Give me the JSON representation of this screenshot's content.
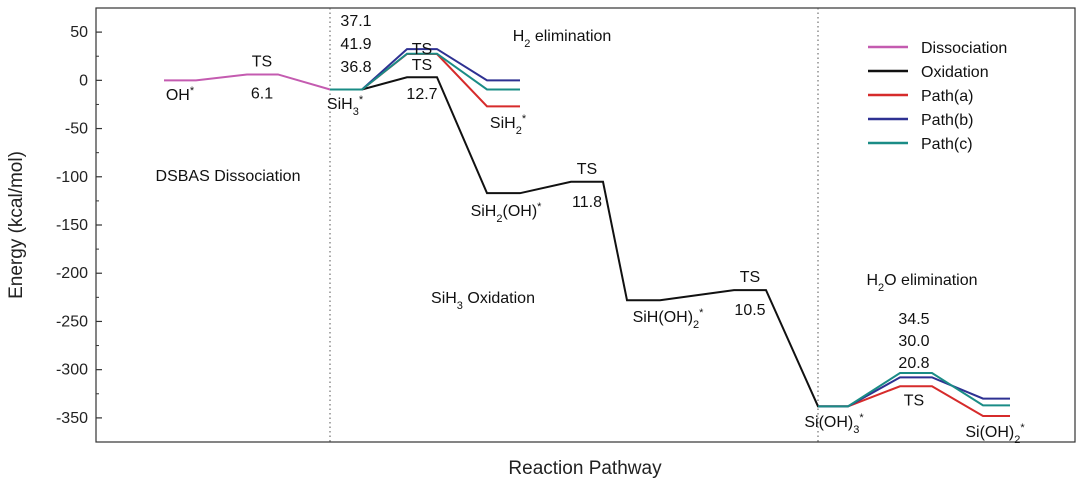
{
  "chart_data": {
    "type": "line",
    "title": "",
    "xlabel": "Reaction Pathway",
    "ylabel": "Energy (kcal/mol)",
    "ylim": [
      -375,
      75
    ],
    "yticks": [
      50,
      0,
      -50,
      -100,
      -150,
      -200,
      -250,
      -300,
      -350
    ],
    "legend_position": "top-right",
    "colors": {
      "Dissociation": "#c45bb0",
      "Oxidation": "#111111",
      "Path(a)": "#d62b2b",
      "Path(b)": "#2e3192",
      "Path(c)": "#1a8c86"
    },
    "series": [
      {
        "name": "Dissociation",
        "points": [
          [
            "OH*",
            0
          ],
          [
            "TS",
            6.1
          ],
          [
            "SiH3*",
            -9.5
          ]
        ]
      },
      {
        "name": "Oxidation",
        "points": [
          [
            "SiH3*",
            -9.5
          ],
          [
            "TS",
            3.2
          ],
          [
            "SiH2(OH)*",
            -117
          ],
          [
            "TS",
            -105.2
          ],
          [
            "SiH(OH)2*",
            -228
          ],
          [
            "TS",
            -217.5
          ],
          [
            "Si(OH)3*",
            -338
          ]
        ]
      },
      {
        "name": "Path(a)",
        "points": [
          [
            "SiH3*",
            -9.5
          ],
          [
            "TS",
            27.3
          ],
          [
            "SiH2*",
            -27
          ],
          [
            "Si(OH)3*",
            -338
          ],
          [
            "TS",
            -317.2
          ],
          [
            "Si(OH)2*",
            -348
          ]
        ]
      },
      {
        "name": "Path(b)",
        "points": [
          [
            "SiH3*",
            -9.5
          ],
          [
            "TS",
            32.4
          ],
          [
            "SiH2*",
            0
          ],
          [
            "Si(OH)3*",
            -338
          ],
          [
            "TS",
            -308
          ],
          [
            "Si(OH)2*",
            -330
          ]
        ]
      },
      {
        "name": "Path(c)",
        "points": [
          [
            "SiH3*",
            -9.5
          ],
          [
            "TS",
            27.6
          ],
          [
            "SiH2*",
            -9.5
          ],
          [
            "Si(OH)3*",
            -338
          ],
          [
            "TS",
            -303.5
          ],
          [
            "Si(OH)2*",
            -337
          ]
        ]
      }
    ],
    "energy_labels": {
      "dissociation_ts": "6.1",
      "h2_elim_c": "37.1",
      "h2_elim_b": "41.9",
      "h2_elim_a": "36.8",
      "ox_ts1": "12.7",
      "ox_ts2": "11.8",
      "ox_ts3": "10.5",
      "h2o_elim_c": "34.5",
      "h2o_elim_b": "30.0",
      "h2o_elim_a": "20.8"
    },
    "ts_label": "TS",
    "state_labels": {
      "oh": "OH*",
      "sih3": "SiH3*",
      "sih2": "SiH2*",
      "sih2oh": "SiH2(OH)*",
      "sihoh2": "SiH(OH)2*",
      "sioh3": "Si(OH)3*",
      "sioh2": "Si(OH)2*"
    },
    "region_labels": {
      "dsbas": "DSBAS Dissociation",
      "h2_elim": "H2 elimination",
      "sih3_ox": "SiH3 Oxidation",
      "h2o_elim": "H2O elimination"
    },
    "legend": [
      "Dissociation",
      "Oxidation",
      "Path(a)",
      "Path(b)",
      "Path(c)"
    ]
  }
}
